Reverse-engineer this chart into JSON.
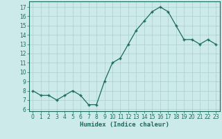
{
  "x": [
    0,
    1,
    2,
    3,
    4,
    5,
    6,
    7,
    8,
    9,
    10,
    11,
    12,
    13,
    14,
    15,
    16,
    17,
    18,
    19,
    20,
    21,
    22,
    23
  ],
  "y": [
    8.0,
    7.5,
    7.5,
    7.0,
    7.5,
    8.0,
    7.5,
    6.5,
    6.5,
    9.0,
    11.0,
    11.5,
    13.0,
    14.5,
    15.5,
    16.5,
    17.0,
    16.5,
    15.0,
    13.5,
    13.5,
    13.0,
    13.5,
    13.0
  ],
  "xlabel": "Humidex (Indice chaleur)",
  "ylim": [
    5.8,
    17.6
  ],
  "xlim": [
    -0.5,
    23.5
  ],
  "yticks": [
    6,
    7,
    8,
    9,
    10,
    11,
    12,
    13,
    14,
    15,
    16,
    17
  ],
  "xticks": [
    0,
    1,
    2,
    3,
    4,
    5,
    6,
    7,
    8,
    9,
    10,
    11,
    12,
    13,
    14,
    15,
    16,
    17,
    18,
    19,
    20,
    21,
    22,
    23
  ],
  "line_color": "#1a6b5a",
  "marker_color": "#1a6b5a",
  "bg_color": "#cceaea",
  "grid_color": "#aacece",
  "spine_color": "#1a6b5a",
  "xlabel_fontsize": 6.5,
  "tick_fontsize": 5.5
}
